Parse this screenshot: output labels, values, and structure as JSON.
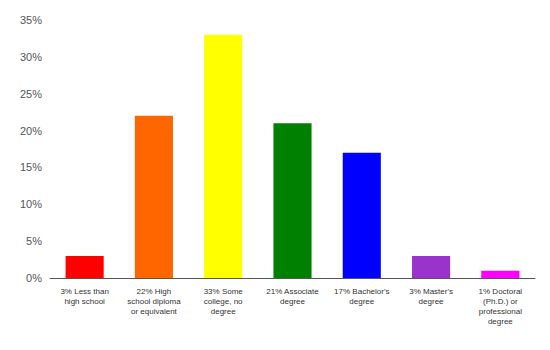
{
  "chart_data": {
    "type": "bar",
    "categories": [
      "3% Less than\nhigh school",
      "22% High\nschool diploma\nor equivalent",
      "33% Some\ncollege, no\ndegree",
      "21% Associate\ndegree",
      "17% Bachelor's\ndegree",
      "3% Master's\ndegree",
      "1% Doctoral\n(Ph.D.) or\nprofessional\ndegree"
    ],
    "values": [
      3,
      22,
      33,
      21,
      17,
      3,
      1
    ],
    "colors": [
      "#ff0000",
      "#ff6600",
      "#ffff00",
      "#008000",
      "#0000ff",
      "#9933cc",
      "#ff00ff"
    ],
    "ylim": [
      0,
      35
    ],
    "yticks": [
      {
        "value": 0,
        "label": "0%"
      },
      {
        "value": 5,
        "label": "5%"
      },
      {
        "value": 10,
        "label": "10%"
      },
      {
        "value": 15,
        "label": "15%"
      },
      {
        "value": 20,
        "label": "20%"
      },
      {
        "value": 25,
        "label": "25%"
      },
      {
        "value": 30,
        "label": "30%"
      },
      {
        "value": 35,
        "label": "35%"
      }
    ],
    "grid": false
  }
}
